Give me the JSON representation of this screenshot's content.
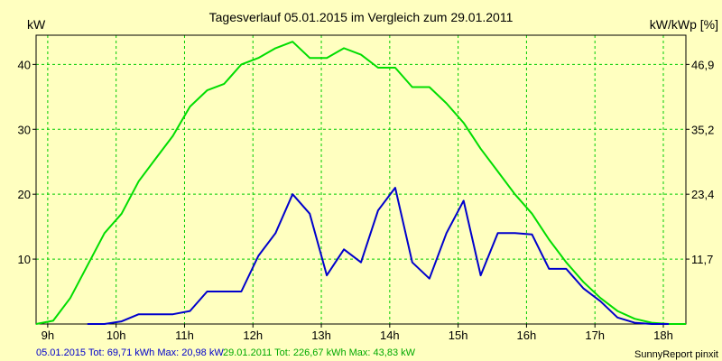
{
  "chart_data": {
    "type": "line",
    "title": "Tagesverlauf 05.01.2015 im Vergleich zum 29.01.2011",
    "ylabel_left": "kW",
    "ylabel_right": "kW/kWp [%]",
    "x_ticks": [
      "9h",
      "10h",
      "11h",
      "12h",
      "13h",
      "14h",
      "15h",
      "16h",
      "17h",
      "18h"
    ],
    "x_tick_values": [
      9,
      10,
      11,
      12,
      13,
      14,
      15,
      16,
      17,
      18
    ],
    "xlim": [
      8.83,
      18.33
    ],
    "y_ticks_left": [
      "10",
      "20",
      "30",
      "40"
    ],
    "y_tick_values_left": [
      10,
      20,
      30,
      40
    ],
    "y_ticks_right": [
      "11,7",
      "23,4",
      "35,2",
      "46,9"
    ],
    "ylim": [
      0,
      44.5
    ],
    "grid": true,
    "series": [
      {
        "name": "29.01.2011",
        "color": "#00dd00",
        "x": [
          8.83,
          9.08,
          9.33,
          9.58,
          9.83,
          10.08,
          10.33,
          10.58,
          10.83,
          11.08,
          11.33,
          11.58,
          11.83,
          12.08,
          12.33,
          12.58,
          12.83,
          13.08,
          13.33,
          13.58,
          13.83,
          14.08,
          14.33,
          14.58,
          14.83,
          15.08,
          15.33,
          15.58,
          15.83,
          16.08,
          16.33,
          16.58,
          16.83,
          17.08,
          17.33,
          17.58,
          17.83,
          18.08,
          18.33
        ],
        "values": [
          0,
          0.5,
          4,
          9,
          14,
          17,
          22,
          25.5,
          29,
          33.5,
          36,
          37,
          40,
          41,
          42.5,
          43.5,
          41,
          41,
          42.5,
          41.5,
          39.5,
          39.5,
          36.5,
          36.5,
          34,
          31,
          27,
          23.5,
          20,
          17,
          13,
          9.5,
          6.5,
          4,
          2,
          0.8,
          0.2,
          0,
          0
        ]
      },
      {
        "name": "05.01.2015",
        "color": "#0000cc",
        "x": [
          9.58,
          9.83,
          10.08,
          10.33,
          10.58,
          10.83,
          11.08,
          11.33,
          11.58,
          11.83,
          12.08,
          12.33,
          12.58,
          12.83,
          13.08,
          13.33,
          13.58,
          13.83,
          14.08,
          14.33,
          14.58,
          14.83,
          15.08,
          15.33,
          15.58,
          15.83,
          16.08,
          16.33,
          16.58,
          16.83,
          17.08,
          17.33,
          17.58,
          17.83,
          18.08
        ],
        "values": [
          0,
          0,
          0.4,
          1.5,
          1.5,
          1.5,
          2,
          5,
          5,
          5,
          10.5,
          14,
          20,
          17,
          7.5,
          11.5,
          9.5,
          17.5,
          21,
          9.5,
          7,
          14,
          19,
          7.5,
          14,
          14,
          13.8,
          8.5,
          8.5,
          5.5,
          3.5,
          1,
          0.2,
          0,
          0
        ]
      }
    ]
  },
  "footer": {
    "series1_text": "05.01.2015 Tot: 69,71 kWh Max: 20,98 kW",
    "series2_text": "29.01.2011 Tot: 226,67 kWh Max: 43,83 kW",
    "credit": "SunnyReport pinxit"
  }
}
